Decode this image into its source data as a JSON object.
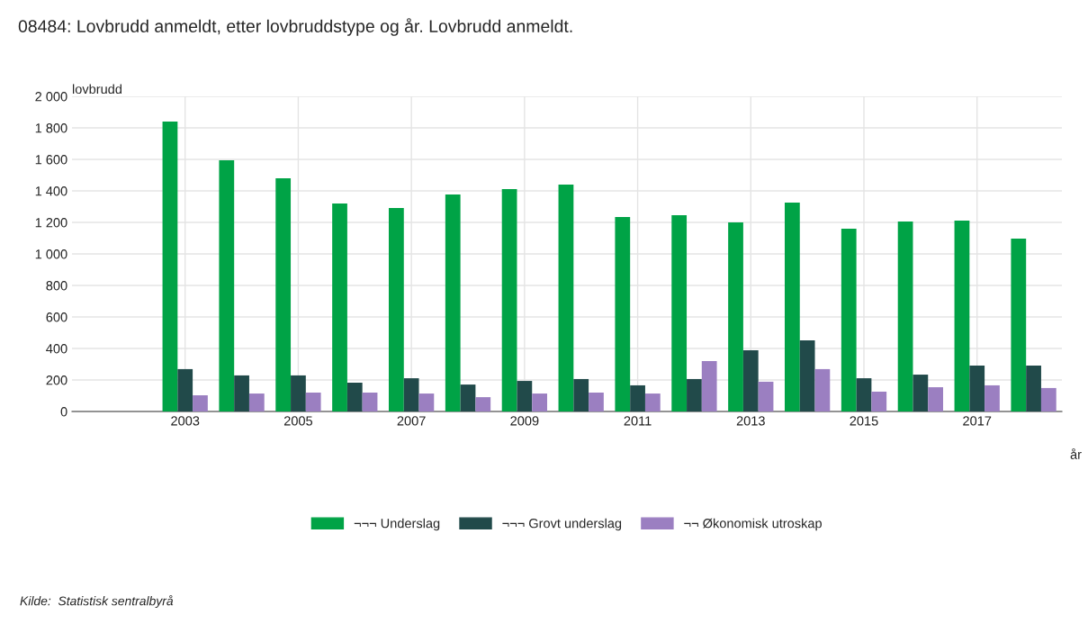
{
  "chart_data": {
    "type": "bar",
    "title": "08484: Lovbrudd anmeldt, etter lovbruddstype og år. Lovbrudd anmeldt.",
    "ylabel": "lovbrudd",
    "xlabel": "år",
    "categories": [
      "2003",
      null,
      "2005",
      null,
      "2007",
      null,
      "2009",
      null,
      "2011",
      null,
      "2013",
      null,
      "2015",
      null,
      "2017",
      null
    ],
    "series": [
      {
        "name": "¬¬¬ Underslag",
        "color": "#00a346",
        "values": [
          1840,
          1594,
          1480,
          1320,
          1291,
          1377,
          1411,
          1440,
          1234,
          1246,
          1200,
          1326,
          1160,
          1206,
          1211,
          1097
        ]
      },
      {
        "name": "¬¬¬ Grovt underslag",
        "color": "#214a4a",
        "values": [
          269,
          229,
          229,
          183,
          211,
          171,
          194,
          206,
          166,
          206,
          389,
          451,
          211,
          234,
          291,
          291
        ]
      },
      {
        "name": "¬¬ Økonomisk utroskap",
        "color": "#9b7fc1",
        "values": [
          103,
          114,
          120,
          120,
          114,
          91,
          114,
          120,
          114,
          320,
          189,
          269,
          126,
          154,
          166,
          149
        ]
      }
    ],
    "ylim": [
      0,
      2000
    ],
    "yticks": [
      0,
      200,
      400,
      600,
      800,
      {
        "value": 1000,
        "label": "1 000"
      },
      {
        "value": 1200,
        "label": "1 200"
      },
      {
        "value": 1400,
        "label": "1 400"
      },
      {
        "value": 1600,
        "label": "1 600"
      },
      {
        "value": 1800,
        "label": "1 800"
      },
      {
        "value": 2000,
        "label": "2 000"
      }
    ],
    "grid": true,
    "legend": "bottom",
    "annotations": [
      "Kilde:  Statistisk sentralbyrå"
    ]
  }
}
